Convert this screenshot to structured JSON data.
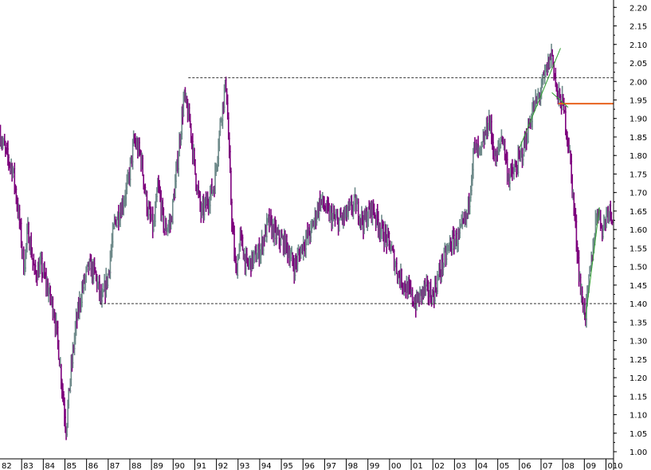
{
  "chart_data": {
    "type": "bar",
    "bar_style": "ohlc-weekly",
    "title": "",
    "xlabel": "",
    "ylabel": "",
    "x_tick_labels": [
      "82",
      "83",
      "84",
      "85",
      "86",
      "87",
      "88",
      "89",
      "90",
      "91",
      "92",
      "93",
      "94",
      "95",
      "96",
      "97",
      "98",
      "99",
      "00",
      "01",
      "02",
      "03",
      "04",
      "05",
      "06",
      "07",
      "08",
      "09",
      "010"
    ],
    "y_tick_labels": [
      "1.00",
      "1.05",
      "1.10",
      "1.15",
      "1.20",
      "1.25",
      "1.30",
      "1.35",
      "1.40",
      "1.45",
      "1.50",
      "1.55",
      "1.60",
      "1.65",
      "1.70",
      "1.75",
      "1.80",
      "1.85",
      "1.90",
      "1.95",
      "2.00",
      "2.05",
      "2.10",
      "2.15",
      "2.20"
    ],
    "xlim": [
      1982.0,
      2010.35
    ],
    "ylim": [
      0.985,
      2.22
    ],
    "y_axis_position": "right",
    "grid": false,
    "colors": {
      "up": "#6e8a8a",
      "down": "#7d007d",
      "support": "#333333",
      "trend": "#2e9e2e",
      "level": "#e8621f"
    },
    "series_path": [
      [
        1982.0,
        1.86
      ],
      [
        1982.3,
        1.8
      ],
      [
        1982.6,
        1.76
      ],
      [
        1982.9,
        1.62
      ],
      [
        1983.1,
        1.5
      ],
      [
        1983.3,
        1.6
      ],
      [
        1983.6,
        1.48
      ],
      [
        1983.9,
        1.5
      ],
      [
        1984.2,
        1.44
      ],
      [
        1984.5,
        1.38
      ],
      [
        1984.7,
        1.28
      ],
      [
        1984.9,
        1.16
      ],
      [
        1985.05,
        1.06
      ],
      [
        1985.25,
        1.2
      ],
      [
        1985.5,
        1.34
      ],
      [
        1985.8,
        1.44
      ],
      [
        1986.1,
        1.5
      ],
      [
        1986.4,
        1.48
      ],
      [
        1986.7,
        1.4
      ],
      [
        1987.0,
        1.48
      ],
      [
        1987.3,
        1.62
      ],
      [
        1987.6,
        1.66
      ],
      [
        1987.9,
        1.72
      ],
      [
        1988.2,
        1.84
      ],
      [
        1988.5,
        1.8
      ],
      [
        1988.8,
        1.66
      ],
      [
        1989.1,
        1.6
      ],
      [
        1989.3,
        1.72
      ],
      [
        1989.6,
        1.6
      ],
      [
        1989.9,
        1.62
      ],
      [
        1990.2,
        1.78
      ],
      [
        1990.5,
        1.96
      ],
      [
        1990.8,
        1.88
      ],
      [
        1991.0,
        1.76
      ],
      [
        1991.3,
        1.64
      ],
      [
        1991.6,
        1.68
      ],
      [
        1991.9,
        1.72
      ],
      [
        1992.2,
        1.9
      ],
      [
        1992.45,
        2.0
      ],
      [
        1992.7,
        1.64
      ],
      [
        1992.9,
        1.48
      ],
      [
        1993.1,
        1.58
      ],
      [
        1993.4,
        1.5
      ],
      [
        1993.7,
        1.52
      ],
      [
        1994.0,
        1.54
      ],
      [
        1994.4,
        1.62
      ],
      [
        1994.8,
        1.58
      ],
      [
        1995.2,
        1.56
      ],
      [
        1995.6,
        1.5
      ],
      [
        1996.0,
        1.56
      ],
      [
        1996.4,
        1.6
      ],
      [
        1996.8,
        1.68
      ],
      [
        1997.2,
        1.64
      ],
      [
        1997.6,
        1.62
      ],
      [
        1998.0,
        1.64
      ],
      [
        1998.4,
        1.67
      ],
      [
        1998.8,
        1.62
      ],
      [
        1999.2,
        1.66
      ],
      [
        1999.6,
        1.6
      ],
      [
        2000.0,
        1.56
      ],
      [
        2000.4,
        1.48
      ],
      [
        2000.8,
        1.44
      ],
      [
        2001.2,
        1.4
      ],
      [
        2001.6,
        1.44
      ],
      [
        2002.0,
        1.42
      ],
      [
        2002.4,
        1.5
      ],
      [
        2002.8,
        1.56
      ],
      [
        2003.2,
        1.58
      ],
      [
        2003.6,
        1.64
      ],
      [
        2003.9,
        1.82
      ],
      [
        2004.2,
        1.8
      ],
      [
        2004.6,
        1.9
      ],
      [
        2004.9,
        1.78
      ],
      [
        2005.2,
        1.86
      ],
      [
        2005.5,
        1.74
      ],
      [
        2005.8,
        1.76
      ],
      [
        2006.2,
        1.82
      ],
      [
        2006.6,
        1.92
      ],
      [
        2006.9,
        1.96
      ],
      [
        2007.2,
        2.02
      ],
      [
        2007.5,
        2.08
      ],
      [
        2007.75,
        1.96
      ],
      [
        2008.0,
        1.94
      ],
      [
        2008.3,
        1.82
      ],
      [
        2008.6,
        1.6
      ],
      [
        2008.85,
        1.42
      ],
      [
        2009.05,
        1.37
      ],
      [
        2009.3,
        1.5
      ],
      [
        2009.6,
        1.66
      ],
      [
        2009.85,
        1.6
      ],
      [
        2010.1,
        1.66
      ],
      [
        2010.3,
        1.64
      ]
    ],
    "horizontal_lines": [
      {
        "style": "dashed",
        "y": 2.01,
        "x_from": 1990.7,
        "x_to": 2010.35
      },
      {
        "style": "dashed",
        "y": 1.4,
        "x_from": 1986.6,
        "x_to": 2010.35
      },
      {
        "style": "solid-orange",
        "y": 1.94,
        "x_from": 2007.8,
        "x_to": 2010.35
      }
    ],
    "trend_lines": [
      {
        "from": [
          2006.0,
          1.82
        ],
        "to": [
          2007.9,
          2.09
        ]
      },
      {
        "from": [
          2007.5,
          1.97
        ],
        "to": [
          2008.25,
          1.93
        ]
      },
      {
        "from": [
          2009.05,
          1.36
        ],
        "to": [
          2009.7,
          1.66
        ]
      }
    ]
  }
}
